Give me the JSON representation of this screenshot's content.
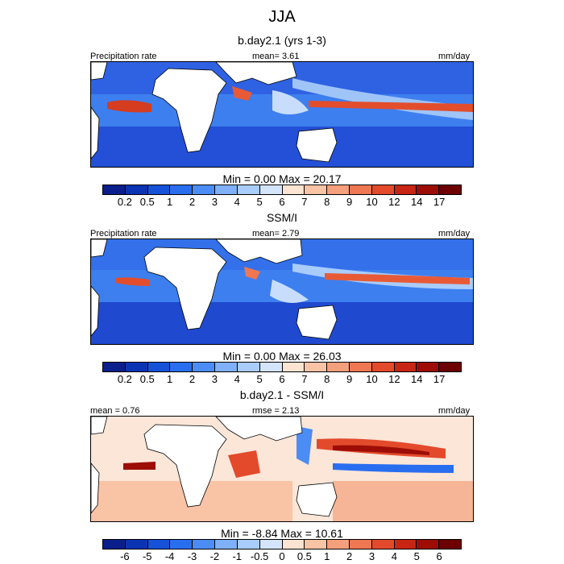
{
  "figure": {
    "title": "JJA"
  },
  "panels": [
    {
      "subtitle": "b.day2.1 (yrs 1-3)",
      "left_label": "Precipitation rate",
      "center_label": "mean=   3.61",
      "right_label": "mm/day",
      "min_max": "Min =   0.00 Max =  20.17",
      "colorbar_ticks": [
        "0.2",
        "0.5",
        "1",
        "2",
        "3",
        "4",
        "5",
        "6",
        "7",
        "8",
        "9",
        "10",
        "12",
        "14",
        "17"
      ],
      "colorbar_colors": [
        "#0a1e8c",
        "#0b34b5",
        "#1552d8",
        "#2a6ef0",
        "#4b8cf5",
        "#7fb0f8",
        "#a9ccfa",
        "#d3e4fb",
        "#fde4d2",
        "#f9c3a5",
        "#f5a07c",
        "#ef7752",
        "#e34a2b",
        "#c82514",
        "#9d0d06",
        "#6d0000"
      ]
    },
    {
      "subtitle": "SSM/I",
      "left_label": "Precipitation rate",
      "center_label": "mean=   2.79",
      "right_label": "mm/day",
      "min_max": "Min =   0.00 Max =  26.03",
      "colorbar_ticks": [
        "0.2",
        "0.5",
        "1",
        "2",
        "3",
        "4",
        "5",
        "6",
        "7",
        "8",
        "9",
        "10",
        "12",
        "14",
        "17"
      ],
      "colorbar_colors": [
        "#0a1e8c",
        "#0b34b5",
        "#1552d8",
        "#2a6ef0",
        "#4b8cf5",
        "#7fb0f8",
        "#a9ccfa",
        "#d3e4fb",
        "#fde4d2",
        "#f9c3a5",
        "#f5a07c",
        "#ef7752",
        "#e34a2b",
        "#c82514",
        "#9d0d06",
        "#6d0000"
      ]
    },
    {
      "subtitle": "b.day2.1 - SSM/I",
      "left_label": "mean =   0.76",
      "center_label": "rmse =   2.13",
      "right_label": "mm/day",
      "min_max": "Min =  -8.84 Max =  10.61",
      "colorbar_ticks": [
        "-6",
        "-5",
        "-4",
        "-3",
        "-2",
        "-1",
        "-0.5",
        "0",
        "0.5",
        "1",
        "2",
        "3",
        "4",
        "5",
        "6"
      ],
      "colorbar_colors": [
        "#0a1e8c",
        "#0b34b5",
        "#1552d8",
        "#2a6ef0",
        "#4b8cf5",
        "#7fb0f8",
        "#a9ccfa",
        "#d3e4fb",
        "#fde4d2",
        "#f9c3a5",
        "#f5a07c",
        "#ef7752",
        "#e34a2b",
        "#c82514",
        "#9d0d06",
        "#6d0000"
      ]
    }
  ]
}
